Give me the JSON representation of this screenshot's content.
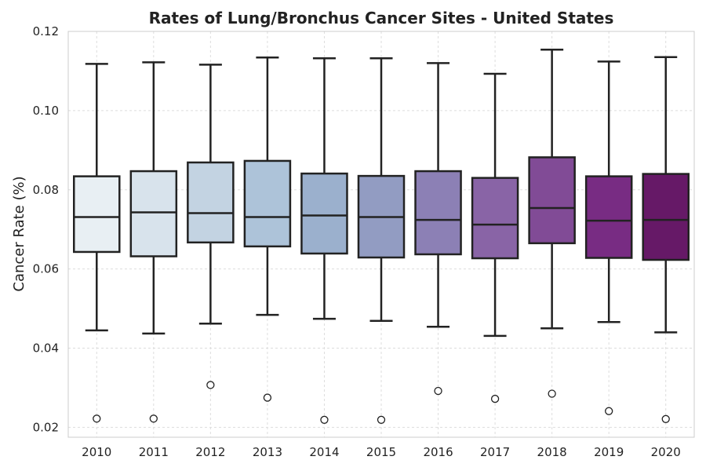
{
  "chart_data": {
    "type": "box",
    "title": "Rates of Lung/Bronchus Cancer Sites - United States",
    "xlabel": "",
    "ylabel": "Cancer Rate (%)",
    "ylim": [
      0.0175,
      0.12
    ],
    "yticks": [
      "0.02",
      "0.04",
      "0.06",
      "0.08",
      "0.10",
      "0.12"
    ],
    "ytick_values": [
      0.02,
      0.04,
      0.06,
      0.08,
      0.1,
      0.12
    ],
    "grid": true,
    "categories": [
      "2010",
      "2011",
      "2012",
      "2013",
      "2014",
      "2015",
      "2016",
      "2017",
      "2018",
      "2019",
      "2020"
    ],
    "boxes": [
      {
        "category": "2010",
        "whisker_low": 0.0445,
        "q1": 0.0643,
        "median": 0.0731,
        "q3": 0.0834,
        "whisker_high": 0.1118,
        "outliers": [
          0.0222
        ],
        "color": "#e8eff3"
      },
      {
        "category": "2011",
        "whisker_low": 0.0437,
        "q1": 0.0632,
        "median": 0.0743,
        "q3": 0.0847,
        "whisker_high": 0.1122,
        "outliers": [
          0.0222
        ],
        "color": "#d8e3ec"
      },
      {
        "category": "2012",
        "whisker_low": 0.0462,
        "q1": 0.0667,
        "median": 0.0741,
        "q3": 0.0869,
        "whisker_high": 0.1116,
        "outliers": [
          0.0307
        ],
        "color": "#c3d3e2"
      },
      {
        "category": "2013",
        "whisker_low": 0.0484,
        "q1": 0.0657,
        "median": 0.0731,
        "q3": 0.0873,
        "whisker_high": 0.1134,
        "outliers": [
          0.0275
        ],
        "color": "#adc3d9"
      },
      {
        "category": "2014",
        "whisker_low": 0.0474,
        "q1": 0.0639,
        "median": 0.0735,
        "q3": 0.0841,
        "whisker_high": 0.1132,
        "outliers": [
          0.0219
        ],
        "color": "#9bb0cd"
      },
      {
        "category": "2015",
        "whisker_low": 0.0469,
        "q1": 0.0629,
        "median": 0.0731,
        "q3": 0.0835,
        "whisker_high": 0.1132,
        "outliers": [
          0.0219
        ],
        "color": "#929cc2"
      },
      {
        "category": "2016",
        "whisker_low": 0.0454,
        "q1": 0.0637,
        "median": 0.0724,
        "q3": 0.0847,
        "whisker_high": 0.112,
        "outliers": [
          0.0292
        ],
        "color": "#8c80b5"
      },
      {
        "category": "2017",
        "whisker_low": 0.0431,
        "q1": 0.0627,
        "median": 0.0712,
        "q3": 0.083,
        "whisker_high": 0.1093,
        "outliers": [
          0.0272
        ],
        "color": "#8964a6"
      },
      {
        "category": "2018",
        "whisker_low": 0.045,
        "q1": 0.0665,
        "median": 0.0754,
        "q3": 0.0882,
        "whisker_high": 0.1154,
        "outliers": [
          0.0285
        ],
        "color": "#814b96"
      },
      {
        "category": "2019",
        "whisker_low": 0.0466,
        "q1": 0.0628,
        "median": 0.0722,
        "q3": 0.0834,
        "whisker_high": 0.1124,
        "outliers": [
          0.0241
        ],
        "color": "#782c83"
      },
      {
        "category": "2020",
        "whisker_low": 0.044,
        "q1": 0.0623,
        "median": 0.0724,
        "q3": 0.084,
        "whisker_high": 0.1135,
        "outliers": [
          0.0221
        ],
        "color": "#661967"
      }
    ]
  }
}
